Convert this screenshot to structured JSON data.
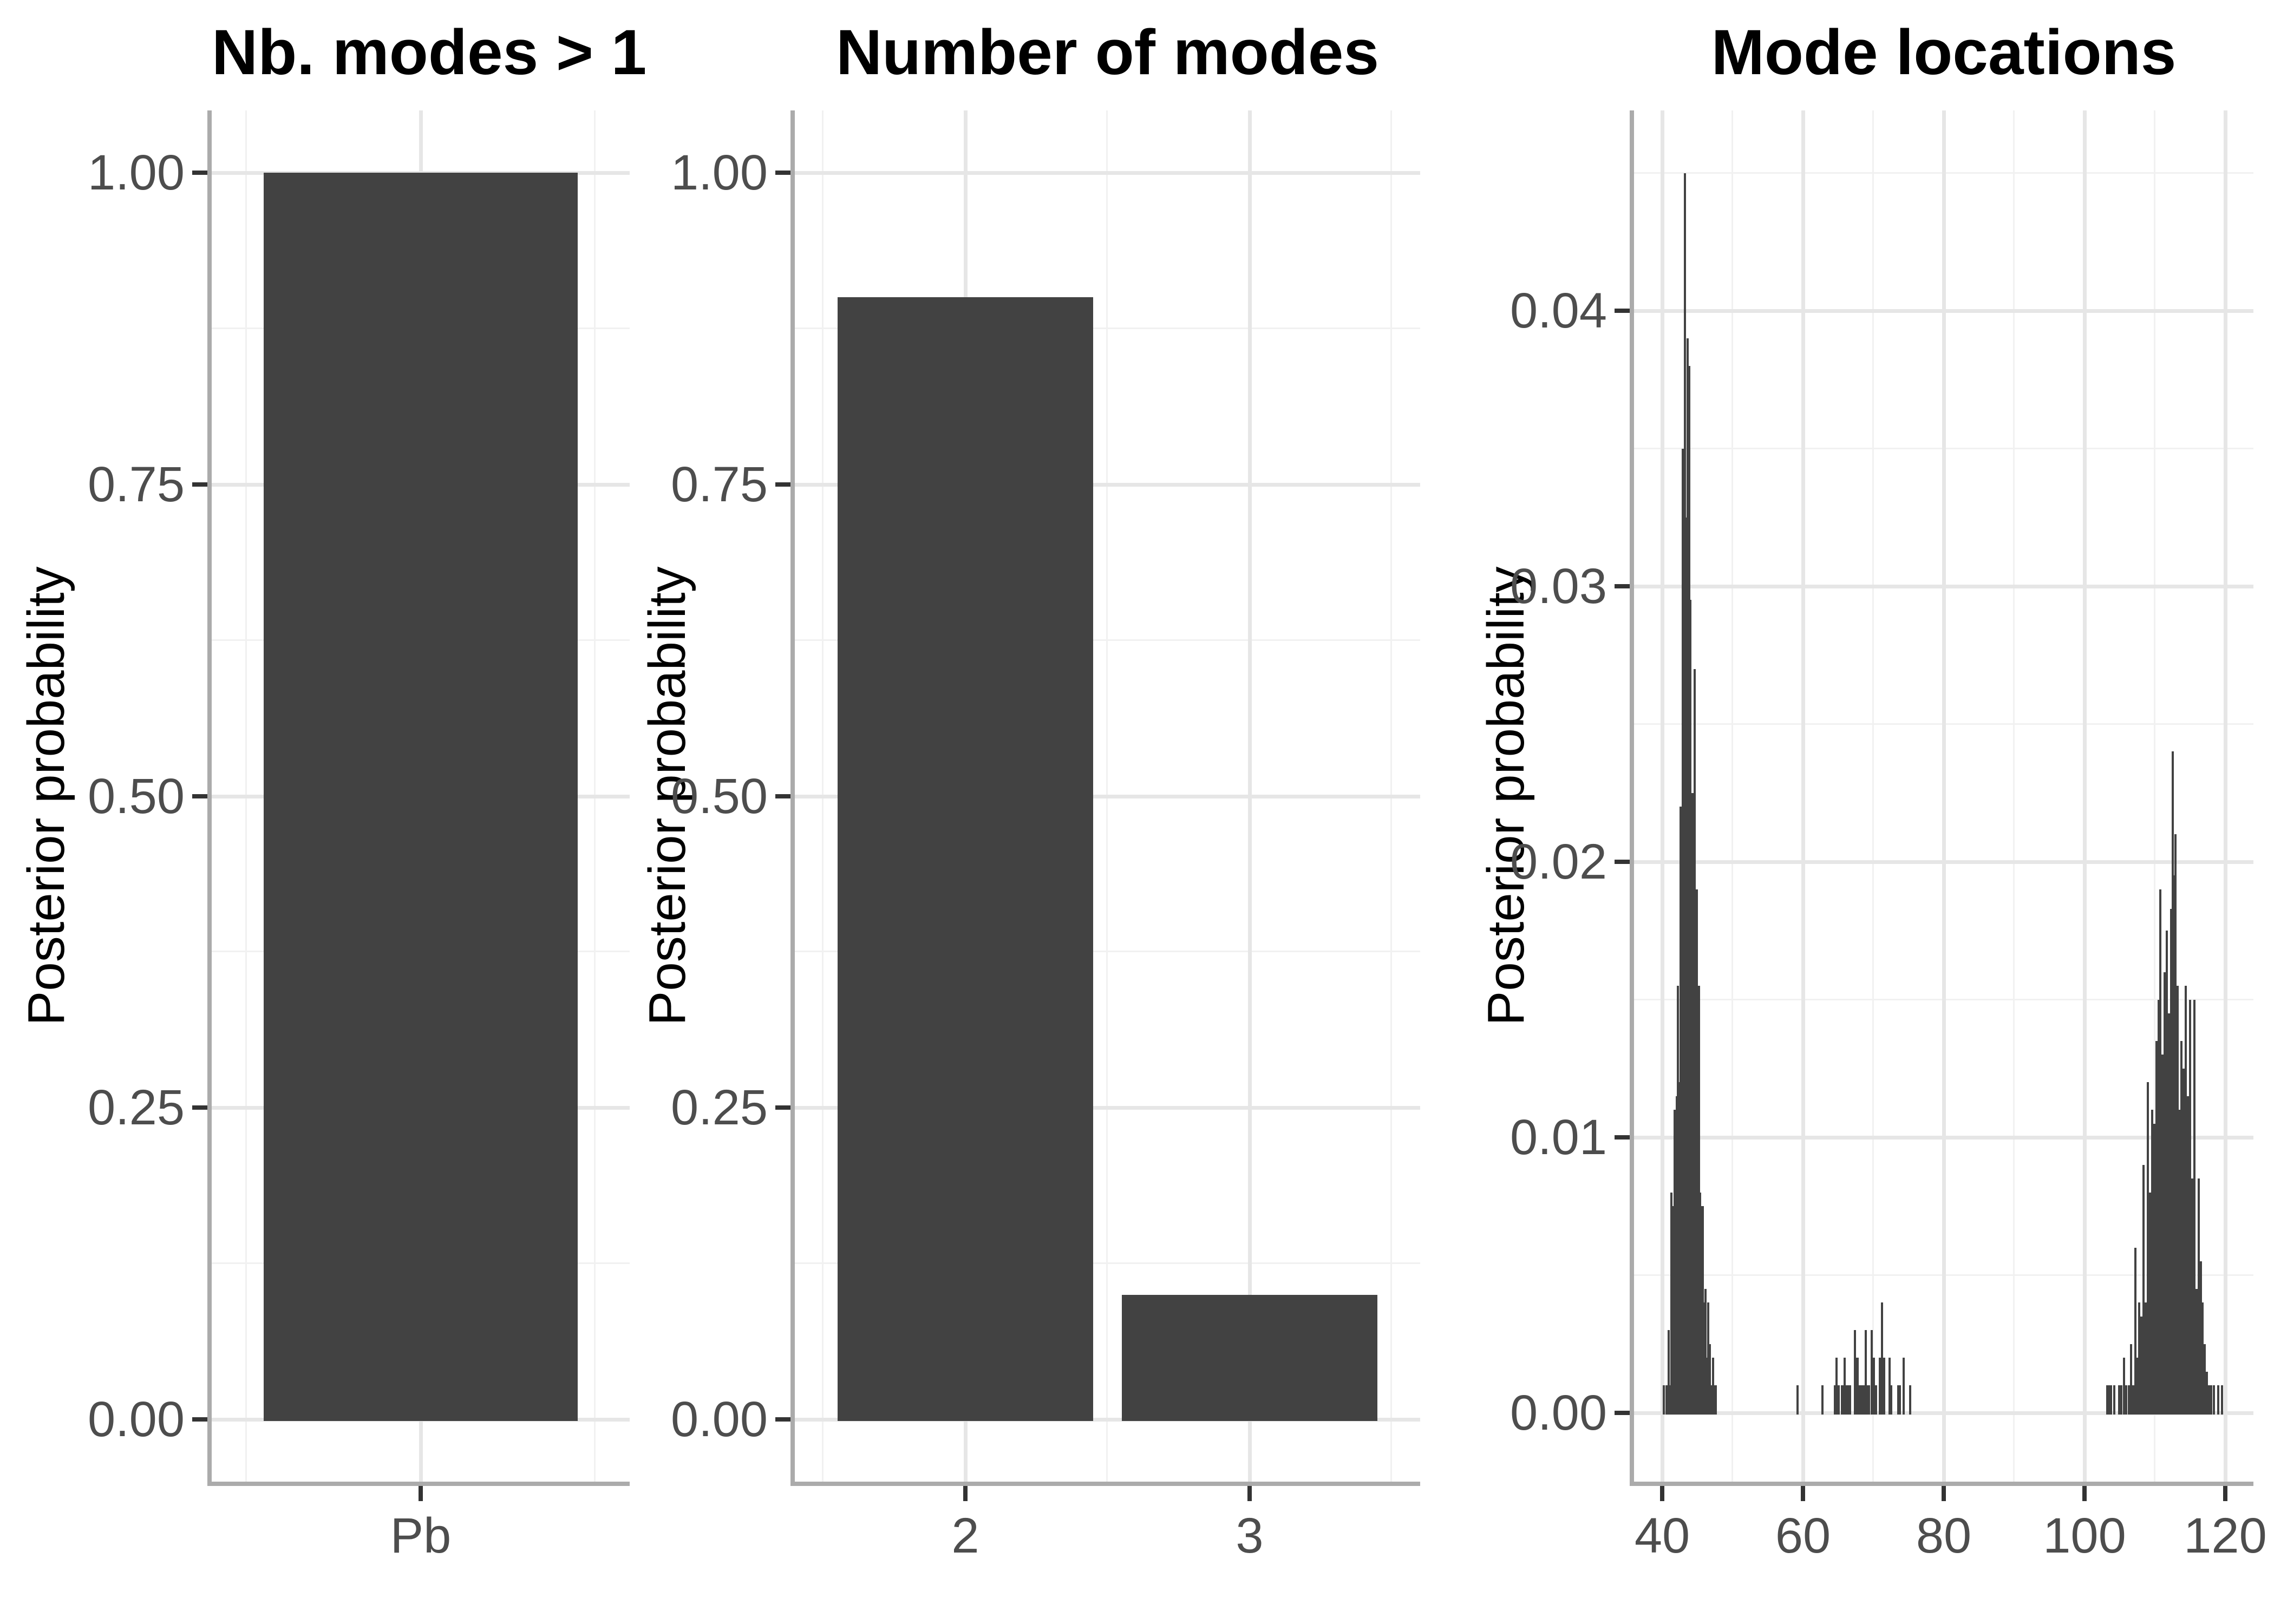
{
  "figure": {
    "colors": {
      "bar_fill": "#424242",
      "grid_major": "#E6E6E6",
      "grid_minor": "#F1F1F1",
      "axis_line": "#ABABAB",
      "tick_mark": "#333333",
      "tick_label": "#4D4D4D",
      "title": "#000000",
      "axis_title": "#000000",
      "background": "#FFFFFF"
    }
  },
  "chart_data": [
    {
      "type": "bar",
      "title": "Nb. modes > 1",
      "xlabel": "",
      "ylabel": "Posterior probability",
      "categories": [
        "Pb"
      ],
      "values": [
        1.0
      ],
      "ylim": [
        0,
        1
      ],
      "yticks": [
        0,
        0.25,
        0.5,
        0.75,
        1
      ],
      "ytick_labels": [
        "0.00",
        "0.25",
        "0.50",
        "0.75",
        "1.00"
      ],
      "grid": "major+minor",
      "legend": false
    },
    {
      "type": "bar",
      "title": "Number of modes",
      "xlabel": "",
      "ylabel": "Posterior probability",
      "categories": [
        "2",
        "3"
      ],
      "values": [
        0.9,
        0.1
      ],
      "ylim": [
        0,
        1
      ],
      "yticks": [
        0,
        0.25,
        0.5,
        0.75,
        1
      ],
      "ytick_labels": [
        "0.00",
        "0.25",
        "0.50",
        "0.75",
        "1.00"
      ],
      "grid": "major+minor",
      "legend": false
    },
    {
      "type": "bar",
      "subtype": "needle-histogram",
      "title": "Mode locations",
      "xlabel": "",
      "ylabel": "Posterior probability",
      "xlim": [
        36,
        124
      ],
      "ylim": [
        0,
        0.0475
      ],
      "xticks": [
        40,
        60,
        80,
        100,
        120
      ],
      "xtick_labels": [
        "40",
        "60",
        "80",
        "100",
        "120"
      ],
      "yticks": [
        0,
        0.01,
        0.02,
        0.03,
        0.04
      ],
      "ytick_labels": [
        "0.00",
        "0.01",
        "0.02",
        "0.03",
        "0.04"
      ],
      "grid": "major+minor",
      "legend": false,
      "bars": [
        [
          40.2,
          0.001
        ],
        [
          40.6,
          0.001
        ],
        [
          40.9,
          0.003
        ],
        [
          41.1,
          0.001
        ],
        [
          41.3,
          0.008
        ],
        [
          41.5,
          0.0075
        ],
        [
          41.65,
          0.001
        ],
        [
          41.8,
          0.011
        ],
        [
          41.95,
          0.001
        ],
        [
          42.1,
          0.0115
        ],
        [
          42.25,
          0.0155
        ],
        [
          42.4,
          0.001
        ],
        [
          42.5,
          0.012
        ],
        [
          42.65,
          0.022
        ],
        [
          42.8,
          0.0115
        ],
        [
          42.9,
          0.035
        ],
        [
          43.05,
          0.0345
        ],
        [
          43.2,
          0.045
        ],
        [
          43.35,
          0.0325
        ],
        [
          43.45,
          0.0295
        ],
        [
          43.6,
          0.039
        ],
        [
          43.7,
          0.0295
        ],
        [
          43.85,
          0.038
        ],
        [
          44.0,
          0.0295
        ],
        [
          44.15,
          0.0145
        ],
        [
          44.3,
          0.0225
        ],
        [
          44.45,
          0.0105
        ],
        [
          44.6,
          0.027
        ],
        [
          44.75,
          0.0105
        ],
        [
          44.9,
          0.019
        ],
        [
          45.05,
          0.008
        ],
        [
          45.2,
          0.0155
        ],
        [
          45.35,
          0.008
        ],
        [
          45.5,
          0.0075
        ],
        [
          45.65,
          0.0055
        ],
        [
          45.8,
          0.0075
        ],
        [
          45.95,
          0.004
        ],
        [
          46.15,
          0.0045
        ],
        [
          46.35,
          0.002
        ],
        [
          46.55,
          0.004
        ],
        [
          46.75,
          0.0025
        ],
        [
          47.0,
          0.001
        ],
        [
          47.2,
          0.002
        ],
        [
          47.45,
          0.001
        ],
        [
          47.65,
          0.001
        ],
        [
          59.2,
          0.001
        ],
        [
          62.8,
          0.001
        ],
        [
          64.5,
          0.001
        ],
        [
          64.8,
          0.002
        ],
        [
          65.1,
          0.001
        ],
        [
          65.5,
          0.001
        ],
        [
          65.7,
          0.001
        ],
        [
          65.9,
          0.002
        ],
        [
          66.1,
          0.001
        ],
        [
          66.3,
          0.001
        ],
        [
          66.5,
          0.001
        ],
        [
          66.7,
          0.001
        ],
        [
          67.4,
          0.003
        ],
        [
          67.6,
          0.002
        ],
        [
          67.8,
          0.002
        ],
        [
          68.0,
          0.001
        ],
        [
          68.2,
          0.001
        ],
        [
          68.5,
          0.001
        ],
        [
          68.7,
          0.001
        ],
        [
          68.9,
          0.003
        ],
        [
          69.1,
          0.001
        ],
        [
          69.4,
          0.001
        ],
        [
          69.8,
          0.003
        ],
        [
          70.1,
          0.002
        ],
        [
          70.4,
          0.001
        ],
        [
          70.9,
          0.002
        ],
        [
          71.2,
          0.004
        ],
        [
          71.5,
          0.002
        ],
        [
          72.3,
          0.002
        ],
        [
          72.5,
          0.001
        ],
        [
          73.5,
          0.001
        ],
        [
          73.8,
          0.001
        ],
        [
          74.3,
          0.002
        ],
        [
          75.2,
          0.001
        ],
        [
          103.2,
          0.001
        ],
        [
          103.5,
          0.001
        ],
        [
          103.8,
          0.001
        ],
        [
          104.2,
          0.001
        ],
        [
          104.9,
          0.001
        ],
        [
          105.2,
          0.001
        ],
        [
          105.6,
          0.002
        ],
        [
          105.9,
          0.001
        ],
        [
          106.3,
          0.001
        ],
        [
          106.6,
          0.0025
        ],
        [
          106.9,
          0.001
        ],
        [
          107.2,
          0.006
        ],
        [
          107.5,
          0.002
        ],
        [
          107.8,
          0.004
        ],
        [
          108.1,
          0.0035
        ],
        [
          108.4,
          0.009
        ],
        [
          108.7,
          0.004
        ],
        [
          109.0,
          0.012
        ],
        [
          109.3,
          0.008
        ],
        [
          109.6,
          0.011
        ],
        [
          109.9,
          0.0105
        ],
        [
          110.2,
          0.0135
        ],
        [
          110.5,
          0.015
        ],
        [
          110.8,
          0.019
        ],
        [
          111.1,
          0.013
        ],
        [
          111.4,
          0.016
        ],
        [
          111.7,
          0.0175
        ],
        [
          112.0,
          0.0145
        ],
        [
          112.3,
          0.0183
        ],
        [
          112.5,
          0.024
        ],
        [
          112.7,
          0.0195
        ],
        [
          112.9,
          0.021
        ],
        [
          113.2,
          0.0155
        ],
        [
          113.5,
          0.011
        ],
        [
          113.8,
          0.0135
        ],
        [
          114.1,
          0.0125
        ],
        [
          114.4,
          0.0155
        ],
        [
          114.7,
          0.0115
        ],
        [
          115.0,
          0.015
        ],
        [
          115.3,
          0.0085
        ],
        [
          115.6,
          0.015
        ],
        [
          115.9,
          0.0045
        ],
        [
          116.2,
          0.0085
        ],
        [
          116.5,
          0.0055
        ],
        [
          116.8,
          0.004
        ],
        [
          117.1,
          0.0025
        ],
        [
          117.4,
          0.0015
        ],
        [
          117.7,
          0.001
        ],
        [
          118.0,
          0.001
        ],
        [
          118.4,
          0.001
        ],
        [
          119.0,
          0.001
        ],
        [
          119.5,
          0.001
        ]
      ]
    }
  ]
}
